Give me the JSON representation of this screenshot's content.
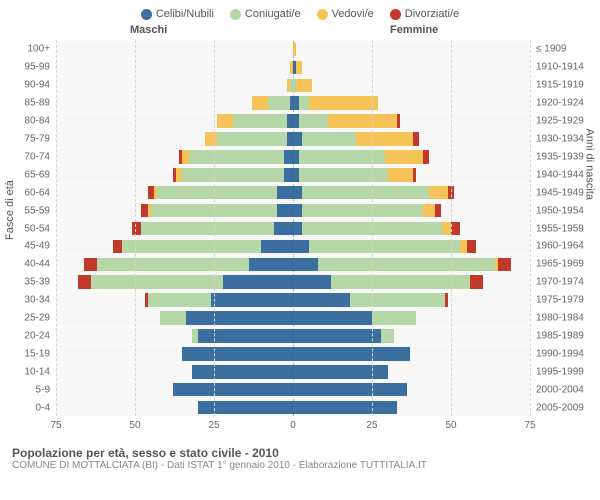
{
  "type": "population-pyramid",
  "legend": [
    {
      "label": "Celibi/Nubili",
      "color": "#3b6fa0"
    },
    {
      "label": "Coniugati/e",
      "color": "#b6d7a8"
    },
    {
      "label": "Vedovi/e",
      "color": "#f6c358"
    },
    {
      "label": "Divorziati/e",
      "color": "#c0392b"
    }
  ],
  "male_label": "Maschi",
  "female_label": "Femmine",
  "y_left_title": "Fasce di età",
  "y_right_title": "Anni di nascita",
  "x_ticks": [
    75,
    50,
    25,
    0,
    25,
    50,
    75
  ],
  "x_max": 75,
  "background_color": "#f7f7f7",
  "grid_color": "#d5d5d5",
  "footer_title": "Popolazione per età, sesso e stato civile - 2010",
  "footer_sub": "COMUNE DI MOTTALCIATA (BI) - Dati ISTAT 1° gennaio 2010 - Elaborazione TUTTITALIA.IT",
  "rows": [
    {
      "age": "100+",
      "birth": "≤ 1909",
      "m": {
        "c": 0,
        "con": 0,
        "v": 0,
        "d": 0
      },
      "f": {
        "c": 0,
        "con": 0,
        "v": 1,
        "d": 0
      }
    },
    {
      "age": "95-99",
      "birth": "1910-1914",
      "m": {
        "c": 0,
        "con": 0,
        "v": 1,
        "d": 0
      },
      "f": {
        "c": 1,
        "con": 0,
        "v": 2,
        "d": 0
      }
    },
    {
      "age": "90-94",
      "birth": "1915-1919",
      "m": {
        "c": 0,
        "con": 1,
        "v": 1,
        "d": 0
      },
      "f": {
        "c": 0,
        "con": 1,
        "v": 5,
        "d": 0
      }
    },
    {
      "age": "85-89",
      "birth": "1920-1924",
      "m": {
        "c": 1,
        "con": 7,
        "v": 5,
        "d": 0
      },
      "f": {
        "c": 2,
        "con": 3,
        "v": 22,
        "d": 0
      }
    },
    {
      "age": "80-84",
      "birth": "1925-1929",
      "m": {
        "c": 2,
        "con": 17,
        "v": 5,
        "d": 0
      },
      "f": {
        "c": 2,
        "con": 9,
        "v": 22,
        "d": 1
      }
    },
    {
      "age": "75-79",
      "birth": "1930-1934",
      "m": {
        "c": 2,
        "con": 22,
        "v": 4,
        "d": 0
      },
      "f": {
        "c": 3,
        "con": 17,
        "v": 18,
        "d": 2
      }
    },
    {
      "age": "70-74",
      "birth": "1935-1939",
      "m": {
        "c": 3,
        "con": 30,
        "v": 2,
        "d": 1
      },
      "f": {
        "c": 2,
        "con": 27,
        "v": 12,
        "d": 2
      }
    },
    {
      "age": "65-69",
      "birth": "1940-1944",
      "m": {
        "c": 3,
        "con": 32,
        "v": 2,
        "d": 1
      },
      "f": {
        "c": 2,
        "con": 28,
        "v": 8,
        "d": 1
      }
    },
    {
      "age": "60-64",
      "birth": "1945-1949",
      "m": {
        "c": 5,
        "con": 38,
        "v": 1,
        "d": 2
      },
      "f": {
        "c": 3,
        "con": 40,
        "v": 6,
        "d": 2
      }
    },
    {
      "age": "55-59",
      "birth": "1950-1954",
      "m": {
        "c": 5,
        "con": 40,
        "v": 1,
        "d": 2
      },
      "f": {
        "c": 3,
        "con": 38,
        "v": 4,
        "d": 2
      }
    },
    {
      "age": "50-54",
      "birth": "1955-1959",
      "m": {
        "c": 6,
        "con": 42,
        "v": 0,
        "d": 3
      },
      "f": {
        "c": 3,
        "con": 44,
        "v": 3,
        "d": 3
      }
    },
    {
      "age": "45-49",
      "birth": "1960-1964",
      "m": {
        "c": 10,
        "con": 44,
        "v": 0,
        "d": 3
      },
      "f": {
        "c": 5,
        "con": 48,
        "v": 2,
        "d": 3
      }
    },
    {
      "age": "40-44",
      "birth": "1965-1969",
      "m": {
        "c": 14,
        "con": 48,
        "v": 0,
        "d": 4
      },
      "f": {
        "c": 8,
        "con": 56,
        "v": 1,
        "d": 4
      }
    },
    {
      "age": "35-39",
      "birth": "1970-1974",
      "m": {
        "c": 22,
        "con": 42,
        "v": 0,
        "d": 4
      },
      "f": {
        "c": 12,
        "con": 44,
        "v": 0,
        "d": 4
      }
    },
    {
      "age": "30-34",
      "birth": "1975-1979",
      "m": {
        "c": 26,
        "con": 20,
        "v": 0,
        "d": 1
      },
      "f": {
        "c": 18,
        "con": 30,
        "v": 0,
        "d": 1
      }
    },
    {
      "age": "25-29",
      "birth": "1980-1984",
      "m": {
        "c": 34,
        "con": 8,
        "v": 0,
        "d": 0
      },
      "f": {
        "c": 25,
        "con": 14,
        "v": 0,
        "d": 0
      }
    },
    {
      "age": "20-24",
      "birth": "1985-1989",
      "m": {
        "c": 30,
        "con": 2,
        "v": 0,
        "d": 0
      },
      "f": {
        "c": 28,
        "con": 4,
        "v": 0,
        "d": 0
      }
    },
    {
      "age": "15-19",
      "birth": "1990-1994",
      "m": {
        "c": 35,
        "con": 0,
        "v": 0,
        "d": 0
      },
      "f": {
        "c": 37,
        "con": 0,
        "v": 0,
        "d": 0
      }
    },
    {
      "age": "10-14",
      "birth": "1995-1999",
      "m": {
        "c": 32,
        "con": 0,
        "v": 0,
        "d": 0
      },
      "f": {
        "c": 30,
        "con": 0,
        "v": 0,
        "d": 0
      }
    },
    {
      "age": "5-9",
      "birth": "2000-2004",
      "m": {
        "c": 38,
        "con": 0,
        "v": 0,
        "d": 0
      },
      "f": {
        "c": 36,
        "con": 0,
        "v": 0,
        "d": 0
      }
    },
    {
      "age": "0-4",
      "birth": "2005-2009",
      "m": {
        "c": 30,
        "con": 0,
        "v": 0,
        "d": 0
      },
      "f": {
        "c": 33,
        "con": 0,
        "v": 0,
        "d": 0
      }
    }
  ]
}
